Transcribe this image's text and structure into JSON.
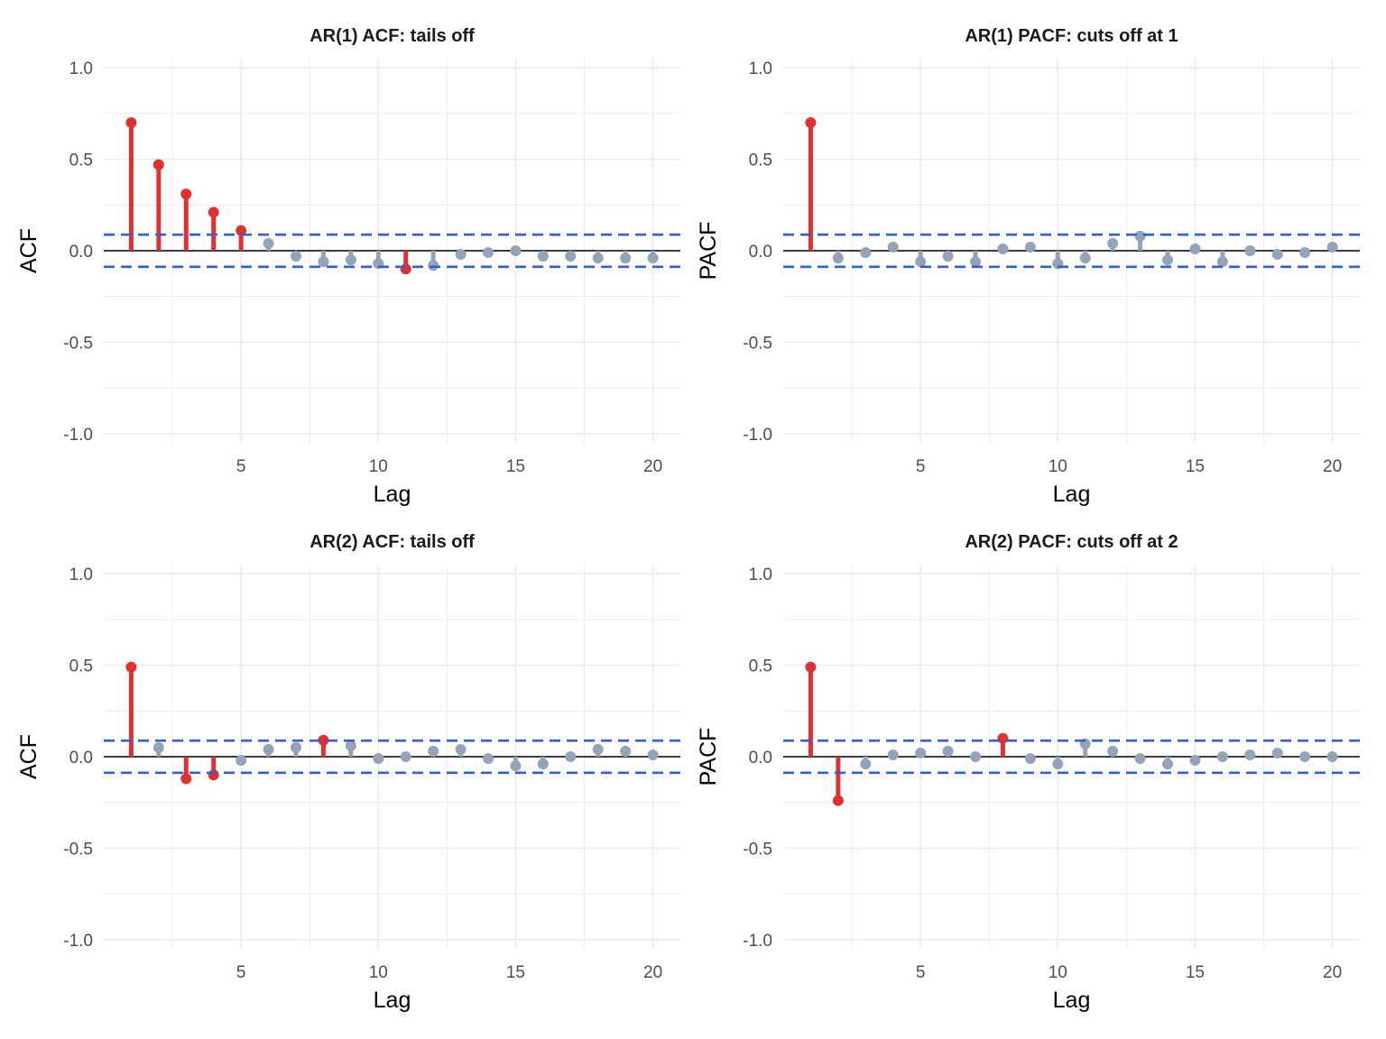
{
  "colors": {
    "significant": "#e03131",
    "nonsignificant": "#95a3b8",
    "confidence_band": "#2f5fd8",
    "zero_line": "#000000",
    "grid": "#ebebeb"
  },
  "chart_data": [
    {
      "type": "lollipop",
      "title": "AR(1) ACF: tails off",
      "xlabel": "Lag",
      "ylabel": "ACF",
      "xlim": [
        0,
        21
      ],
      "ylim": [
        -1.05,
        1.05
      ],
      "x_ticks": [
        5,
        10,
        15,
        20
      ],
      "y_ticks": [
        -1.0,
        -0.5,
        0.0,
        0.5,
        1.0
      ],
      "y_tick_labels": [
        "-1.0",
        "-0.5",
        "0.0",
        "0.5",
        "1.0"
      ],
      "confidence_bound": 0.088,
      "grid": true,
      "lags": [
        1,
        2,
        3,
        4,
        5,
        6,
        7,
        8,
        9,
        10,
        11,
        12,
        13,
        14,
        15,
        16,
        17,
        18,
        19,
        20
      ],
      "values": [
        0.7,
        0.47,
        0.31,
        0.21,
        0.11,
        0.04,
        -0.03,
        -0.06,
        -0.05,
        -0.07,
        -0.1,
        -0.08,
        -0.02,
        -0.01,
        0.0,
        -0.03,
        -0.03,
        -0.04,
        -0.04,
        -0.04
      ]
    },
    {
      "type": "lollipop",
      "title": "AR(1) PACF: cuts off at 1",
      "xlabel": "Lag",
      "ylabel": "PACF",
      "xlim": [
        0,
        21
      ],
      "ylim": [
        -1.05,
        1.05
      ],
      "x_ticks": [
        5,
        10,
        15,
        20
      ],
      "y_ticks": [
        -1.0,
        -0.5,
        0.0,
        0.5,
        1.0
      ],
      "y_tick_labels": [
        "-1.0",
        "-0.5",
        "0.0",
        "0.5",
        "1.0"
      ],
      "confidence_bound": 0.088,
      "grid": true,
      "lags": [
        1,
        2,
        3,
        4,
        5,
        6,
        7,
        8,
        9,
        10,
        11,
        12,
        13,
        14,
        15,
        16,
        17,
        18,
        19,
        20
      ],
      "values": [
        0.7,
        -0.04,
        -0.01,
        0.02,
        -0.06,
        -0.03,
        -0.06,
        0.01,
        0.02,
        -0.07,
        -0.04,
        0.04,
        0.08,
        -0.05,
        0.01,
        -0.06,
        0.0,
        -0.02,
        -0.01,
        0.02
      ]
    },
    {
      "type": "lollipop",
      "title": "AR(2) ACF: tails off",
      "xlabel": "Lag",
      "ylabel": "ACF",
      "xlim": [
        0,
        21
      ],
      "ylim": [
        -1.05,
        1.05
      ],
      "x_ticks": [
        5,
        10,
        15,
        20
      ],
      "y_ticks": [
        -1.0,
        -0.5,
        0.0,
        0.5,
        1.0
      ],
      "y_tick_labels": [
        "-1.0",
        "-0.5",
        "0.0",
        "0.5",
        "1.0"
      ],
      "confidence_bound": 0.088,
      "grid": true,
      "lags": [
        1,
        2,
        3,
        4,
        5,
        6,
        7,
        8,
        9,
        10,
        11,
        12,
        13,
        14,
        15,
        16,
        17,
        18,
        19,
        20
      ],
      "values": [
        0.49,
        0.05,
        -0.12,
        -0.1,
        -0.02,
        0.04,
        0.05,
        0.09,
        0.06,
        -0.01,
        0.0,
        0.03,
        0.04,
        -0.01,
        -0.05,
        -0.04,
        0.0,
        0.04,
        0.03,
        0.01
      ]
    },
    {
      "type": "lollipop",
      "title": "AR(2) PACF: cuts off at 2",
      "xlabel": "Lag",
      "ylabel": "PACF",
      "xlim": [
        0,
        21
      ],
      "ylim": [
        -1.05,
        1.05
      ],
      "x_ticks": [
        5,
        10,
        15,
        20
      ],
      "y_ticks": [
        -1.0,
        -0.5,
        0.0,
        0.5,
        1.0
      ],
      "y_tick_labels": [
        "-1.0",
        "-0.5",
        "0.0",
        "0.5",
        "1.0"
      ],
      "confidence_bound": 0.088,
      "grid": true,
      "lags": [
        1,
        2,
        3,
        4,
        5,
        6,
        7,
        8,
        9,
        10,
        11,
        12,
        13,
        14,
        15,
        16,
        17,
        18,
        19,
        20
      ],
      "values": [
        0.49,
        -0.24,
        -0.04,
        0.01,
        0.02,
        0.03,
        0.0,
        0.1,
        -0.01,
        -0.04,
        0.07,
        0.03,
        -0.01,
        -0.04,
        -0.02,
        0.0,
        0.01,
        0.02,
        0.0,
        0.0
      ]
    }
  ]
}
